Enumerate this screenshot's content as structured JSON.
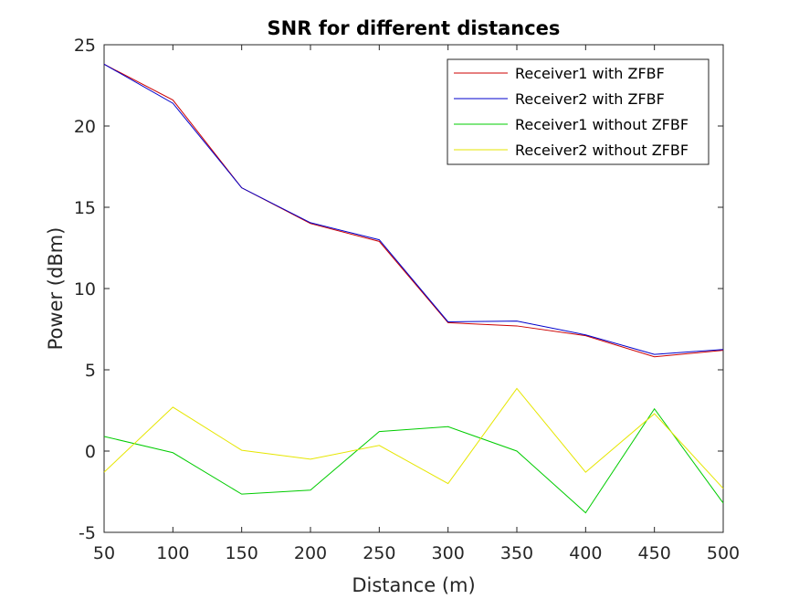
{
  "chart_data": {
    "type": "line",
    "title": "SNR for different distances",
    "xlabel": "Distance (m)",
    "ylabel": "Power (dBm)",
    "xlim": [
      50,
      500
    ],
    "ylim": [
      -5,
      25
    ],
    "x_ticks": [
      50,
      100,
      150,
      200,
      250,
      300,
      350,
      400,
      450,
      500
    ],
    "y_ticks": [
      -5,
      0,
      5,
      10,
      15,
      20,
      25
    ],
    "grid": false,
    "legend_position": "top-right",
    "x": [
      50,
      100,
      150,
      200,
      250,
      300,
      350,
      400,
      450,
      500
    ],
    "series": [
      {
        "name": "Receiver1 with ZFBF",
        "color": "#cc0000",
        "values": [
          23.8,
          21.6,
          16.2,
          14.0,
          12.9,
          7.9,
          7.7,
          7.1,
          5.8,
          6.2
        ]
      },
      {
        "name": "Receiver2 with ZFBF",
        "color": "#0000cc",
        "values": [
          23.8,
          21.4,
          16.2,
          14.05,
          13.0,
          7.95,
          8.0,
          7.15,
          5.95,
          6.25
        ]
      },
      {
        "name": "Receiver1 without ZFBF",
        "color": "#00cc00",
        "values": [
          0.9,
          -0.1,
          -2.65,
          -2.4,
          1.2,
          1.5,
          0.0,
          -3.8,
          2.6,
          -3.2
        ]
      },
      {
        "name": "Receiver2 without ZFBF",
        "color": "#e6e600",
        "values": [
          -1.3,
          2.7,
          0.05,
          -0.5,
          0.35,
          -2.0,
          3.85,
          -1.3,
          2.3,
          -2.3
        ]
      }
    ]
  }
}
